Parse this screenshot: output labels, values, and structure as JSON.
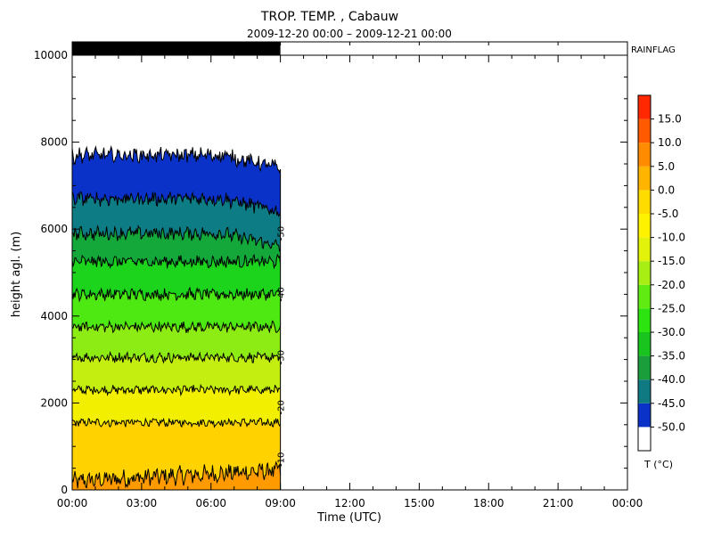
{
  "chart_data": {
    "type": "heatmap",
    "title": "TROP. TEMP. , Cabauw",
    "subtitle": "2009-12-20 00:00  –  2009-12-21 00:00",
    "xlabel": "Time (UTC)",
    "ylabel": "height agl. (m)",
    "xlim_hours": [
      0,
      24
    ],
    "x_ticks": [
      "00:00",
      "03:00",
      "06:00",
      "09:00",
      "12:00",
      "15:00",
      "18:00",
      "21:00",
      "00:00"
    ],
    "ylim": [
      0,
      10000
    ],
    "y_ticks": [
      0,
      2000,
      4000,
      6000,
      8000,
      10000
    ],
    "grid": false,
    "data_end_hour": 9.0,
    "rainflag": {
      "label": "RAINFLAG",
      "raining_from_hour": 0,
      "raining_to_hour": 9.0
    },
    "colorbar": {
      "title": "T (°C)",
      "levels": [
        "-50.0",
        "-45.0",
        "-40.0",
        "-35.0",
        "-30.0",
        "-25.0",
        "-20.0",
        "-15.0",
        "-10.0",
        "-5.0",
        "0.0",
        "5.0",
        "10.0",
        "15.0"
      ],
      "colors": [
        "#ffffff",
        "#0a32c8",
        "#0f7a82",
        "#1a9e3c",
        "#19c41e",
        "#2ce410",
        "#60ec12",
        "#a8ee14",
        "#e2f20a",
        "#fff200",
        "#ffdc00",
        "#ffb400",
        "#ff8c00",
        "#ff5a00",
        "#ff2800"
      ]
    },
    "isotherm_mean_heights_m": [
      {
        "temp": -5.0,
        "height": 200
      },
      {
        "temp": -10.0,
        "height": 1550
      },
      {
        "temp": -15.0,
        "height": 2300
      },
      {
        "temp": -20.0,
        "height": 3050
      },
      {
        "temp": -25.0,
        "height": 3750
      },
      {
        "temp": -30.0,
        "height": 4500
      },
      {
        "temp": -35.0,
        "height": 5250
      },
      {
        "temp": -40.0,
        "height": 5900
      },
      {
        "temp": -45.0,
        "height": 6700
      },
      {
        "temp": -50.0,
        "height": 7700
      }
    ],
    "contour_labels": [
      "-10",
      "-20",
      "-30",
      "-40",
      "-50"
    ]
  }
}
